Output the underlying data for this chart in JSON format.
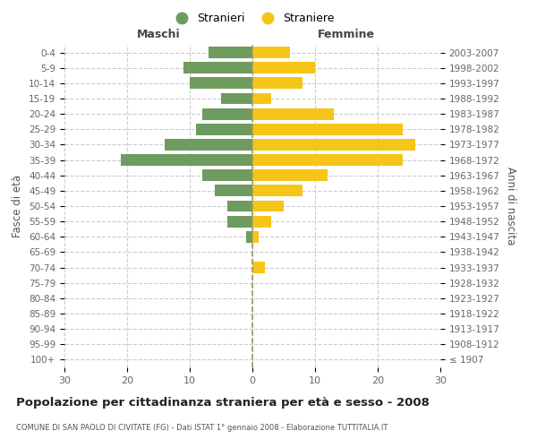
{
  "age_groups": [
    "100+",
    "95-99",
    "90-94",
    "85-89",
    "80-84",
    "75-79",
    "70-74",
    "65-69",
    "60-64",
    "55-59",
    "50-54",
    "45-49",
    "40-44",
    "35-39",
    "30-34",
    "25-29",
    "20-24",
    "15-19",
    "10-14",
    "5-9",
    "0-4"
  ],
  "birth_years": [
    "≤ 1907",
    "1908-1912",
    "1913-1917",
    "1918-1922",
    "1923-1927",
    "1928-1932",
    "1933-1937",
    "1938-1942",
    "1943-1947",
    "1948-1952",
    "1953-1957",
    "1958-1962",
    "1963-1967",
    "1968-1972",
    "1973-1977",
    "1978-1982",
    "1983-1987",
    "1988-1992",
    "1993-1997",
    "1998-2002",
    "2003-2007"
  ],
  "maschi": [
    0,
    0,
    0,
    0,
    0,
    0,
    0,
    0,
    1,
    4,
    4,
    6,
    8,
    21,
    14,
    9,
    8,
    5,
    10,
    11,
    7
  ],
  "femmine": [
    0,
    0,
    0,
    0,
    0,
    0,
    2,
    0,
    1,
    3,
    5,
    8,
    12,
    24,
    26,
    24,
    13,
    3,
    8,
    10,
    6
  ],
  "maschi_color": "#6e9b5e",
  "femmine_color": "#f5c518",
  "background_color": "#ffffff",
  "grid_color": "#cccccc",
  "title": "Popolazione per cittadinanza straniera per età e sesso - 2008",
  "subtitle": "COMUNE DI SAN PAOLO DI CIVITATE (FG) - Dati ISTAT 1° gennaio 2008 - Elaborazione TUTTITALIA.IT",
  "xlabel_left": "Maschi",
  "xlabel_right": "Femmine",
  "ylabel_left": "Fasce di età",
  "ylabel_right": "Anni di nascita",
  "legend_maschi": "Stranieri",
  "legend_femmine": "Straniere",
  "xlim": 30
}
